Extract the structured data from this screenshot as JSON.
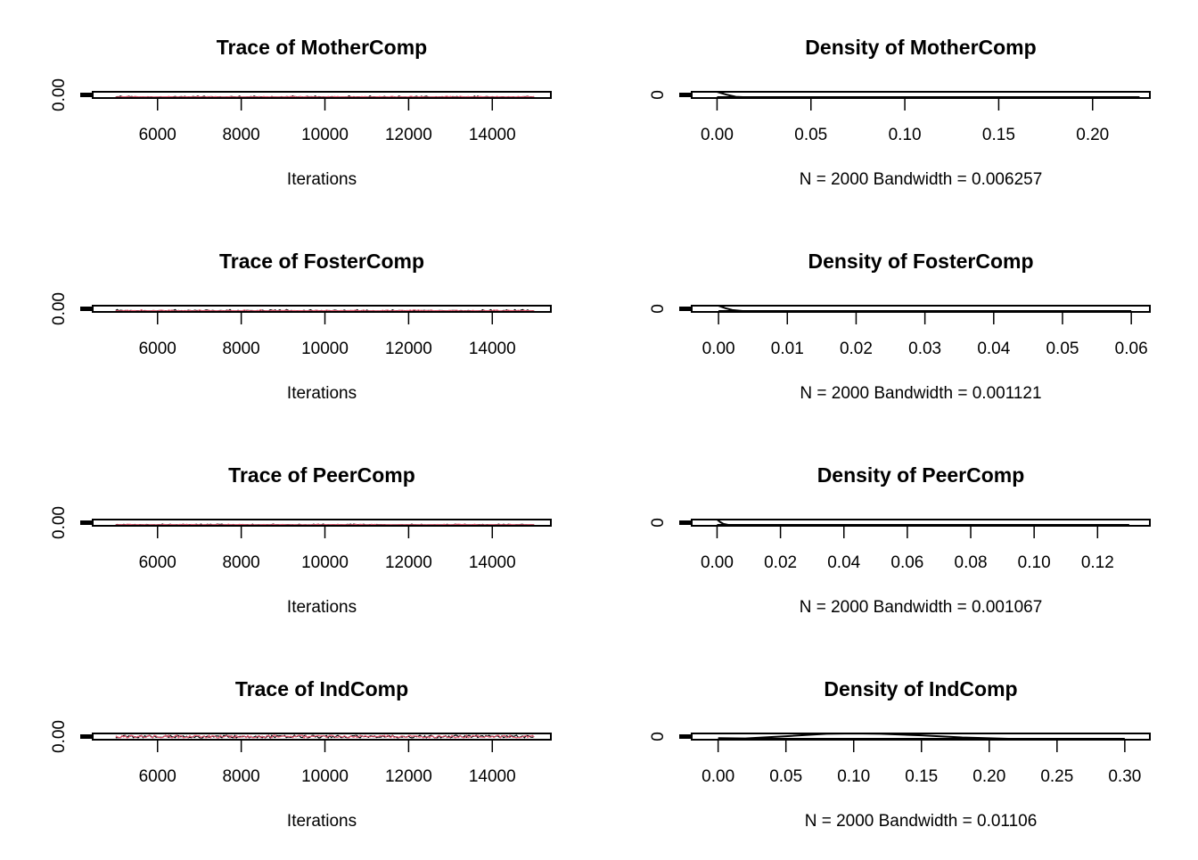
{
  "colors": {
    "chain1": "#000000",
    "chain2": "#DF536B"
  },
  "chart_data": [
    {
      "type": "line",
      "title": "Trace of MotherComp",
      "xlabel": "Iterations",
      "ylabel": "",
      "xlim": [
        4450,
        15400
      ],
      "x_ticks": [
        6000,
        8000,
        10000,
        12000,
        14000
      ],
      "y_tick_label": "0.00",
      "series": [
        {
          "color": "#000000",
          "x": [
            5000,
            15000
          ],
          "y_level": "low",
          "amplitude": 0.35
        },
        {
          "color": "#DF536B",
          "x": [
            5000,
            15000
          ],
          "y_level": "low",
          "amplitude": 0.25
        }
      ]
    },
    {
      "type": "area",
      "title": "Density of MotherComp",
      "xlabel": "N = 2000   Bandwidth = 0.006257",
      "ylabel": "",
      "xlim": [
        -0.0135,
        0.2305
      ],
      "x_ticks": [
        "0.00",
        "0.05",
        "0.10",
        "0.15",
        "0.20"
      ],
      "x_tick_values": [
        0,
        0.05,
        0.1,
        0.15,
        0.2
      ],
      "y_tick_label": "0",
      "density_x": [
        0,
        0.005,
        0.01,
        0.02,
        0.05,
        0.1,
        0.2,
        0.225
      ],
      "density_y": [
        1.0,
        0.55,
        0.2,
        0.06,
        0.02,
        0.01,
        0.005,
        0.0
      ]
    },
    {
      "type": "line",
      "title": "Trace of FosterComp",
      "xlabel": "Iterations",
      "ylabel": "",
      "xlim": [
        4450,
        15400
      ],
      "x_ticks": [
        6000,
        8000,
        10000,
        12000,
        14000
      ],
      "y_tick_label": "0.00",
      "series": [
        {
          "color": "#000000",
          "x": [
            5000,
            15000
          ],
          "y_level": "low",
          "amplitude": 0.45
        },
        {
          "color": "#DF536B",
          "x": [
            5000,
            15000
          ],
          "y_level": "low",
          "amplitude": 0.35
        }
      ]
    },
    {
      "type": "area",
      "title": "Density of FosterComp",
      "xlabel": "N = 2000   Bandwidth = 0.001121",
      "ylabel": "",
      "xlim": [
        -0.0039,
        0.0627
      ],
      "x_ticks": [
        "0.00",
        "0.01",
        "0.02",
        "0.03",
        "0.04",
        "0.05",
        "0.06"
      ],
      "x_tick_values": [
        0,
        0.01,
        0.02,
        0.03,
        0.04,
        0.05,
        0.06
      ],
      "y_tick_label": "0",
      "density_x": [
        0,
        0.001,
        0.002,
        0.004,
        0.01,
        0.03,
        0.06
      ],
      "density_y": [
        1.0,
        0.6,
        0.3,
        0.08,
        0.02,
        0.01,
        0.0
      ]
    },
    {
      "type": "line",
      "title": "Trace of PeerComp",
      "xlabel": "Iterations",
      "ylabel": "",
      "xlim": [
        4450,
        15400
      ],
      "x_ticks": [
        6000,
        8000,
        10000,
        12000,
        14000
      ],
      "y_tick_label": "0.00",
      "series": [
        {
          "color": "#000000",
          "x": [
            5000,
            15000
          ],
          "y_level": "low",
          "amplitude": 0.25
        },
        {
          "color": "#DF536B",
          "x": [
            5000,
            15000
          ],
          "y_level": "low",
          "amplitude": 0.2
        }
      ]
    },
    {
      "type": "area",
      "title": "Density of PeerComp",
      "xlabel": "N = 2000   Bandwidth = 0.001067",
      "ylabel": "",
      "xlim": [
        -0.008,
        0.1365
      ],
      "x_ticks": [
        "0.00",
        "0.02",
        "0.04",
        "0.06",
        "0.08",
        "0.10",
        "0.12"
      ],
      "x_tick_values": [
        0,
        0.02,
        0.04,
        0.06,
        0.08,
        0.1,
        0.12
      ],
      "y_tick_label": "0",
      "density_x": [
        0,
        0.001,
        0.002,
        0.004,
        0.01,
        0.05,
        0.13
      ],
      "density_y": [
        1.0,
        0.6,
        0.3,
        0.1,
        0.03,
        0.01,
        0.0
      ]
    },
    {
      "type": "line",
      "title": "Trace of IndComp",
      "xlabel": "Iterations",
      "ylabel": "",
      "xlim": [
        4450,
        15400
      ],
      "x_ticks": [
        6000,
        8000,
        10000,
        12000,
        14000
      ],
      "y_tick_label": "0.00",
      "series": [
        {
          "color": "#000000",
          "x": [
            5000,
            15000
          ],
          "y_level": "mid",
          "amplitude": 0.6
        },
        {
          "color": "#DF536B",
          "x": [
            5000,
            15000
          ],
          "y_level": "mid",
          "amplitude": 0.6
        }
      ]
    },
    {
      "type": "area",
      "title": "Density of IndComp",
      "xlabel": "N = 2000   Bandwidth = 0.01106",
      "ylabel": "",
      "xlim": [
        -0.0195,
        0.3185
      ],
      "x_ticks": [
        "0.00",
        "0.05",
        "0.10",
        "0.15",
        "0.20",
        "0.25",
        "0.30"
      ],
      "x_tick_values": [
        0,
        0.05,
        0.1,
        0.15,
        0.2,
        0.25,
        0.3
      ],
      "y_tick_label": "0",
      "density_x": [
        0,
        0.02,
        0.05,
        0.08,
        0.1,
        0.12,
        0.15,
        0.18,
        0.22,
        0.26,
        0.3
      ],
      "density_y": [
        0.25,
        0.2,
        0.55,
        0.95,
        1.0,
        0.95,
        0.7,
        0.35,
        0.1,
        0.02,
        0.0
      ]
    }
  ]
}
